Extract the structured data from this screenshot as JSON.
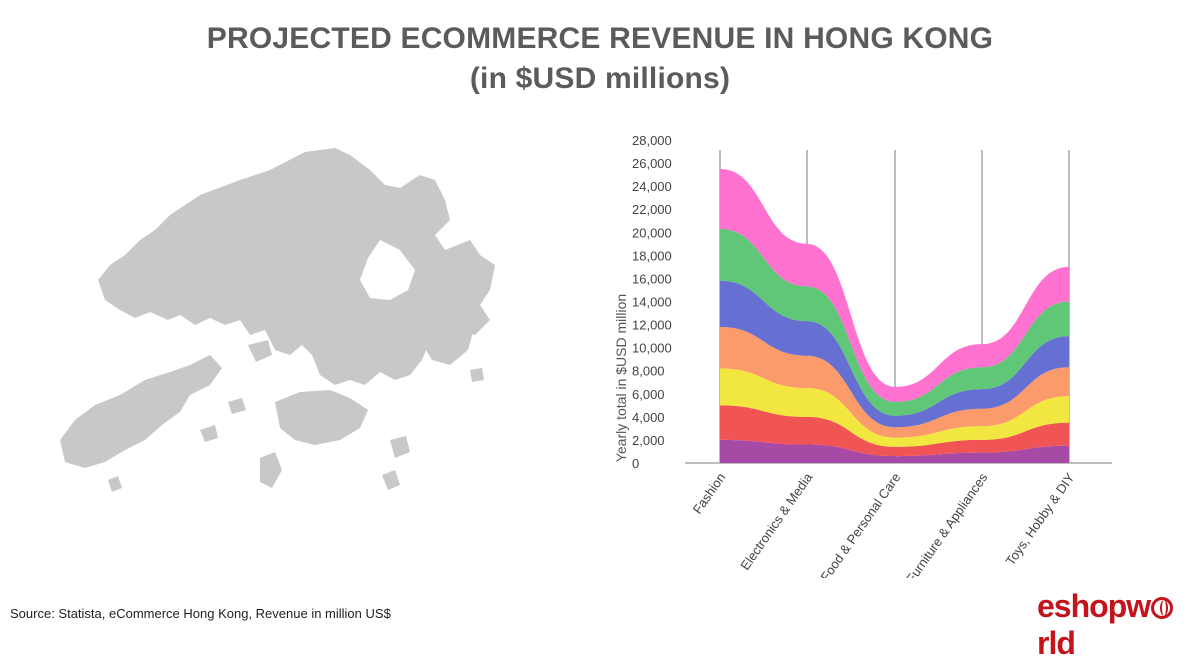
{
  "header": {
    "title": "PROJECTED ECOMMERCE REVENUE IN HONG KONG",
    "subtitle": "(in $USD millions)"
  },
  "map": {
    "icon": "hong-kong-map-icon",
    "color": "#c8c8c8"
  },
  "footer": {
    "source": "Source: Statista, eCommerce Hong Kong, Revenue in million US$",
    "logo_text": "eshopworld",
    "logo_color": "#c4131a"
  },
  "chart_data": {
    "type": "area",
    "stacked": true,
    "categories": [
      "Fashion",
      "Electronics & Media",
      "Food & Personal Care",
      "Furniture & Appliances",
      "Toys, Hobby & DIY"
    ],
    "ylabel": "Yearly total in $USD million",
    "ylim": [
      0,
      28000
    ],
    "yticks": [
      "28,000",
      "26,000",
      "24,000",
      "22,000",
      "20,000",
      "18,000",
      "16,000",
      "14,000",
      "12,000",
      "10,000",
      "8,000",
      "6,000",
      "4,000",
      "2,000",
      "0"
    ],
    "series": [
      {
        "color": "#a74aa6",
        "values": [
          2000,
          1600,
          600,
          900,
          1500
        ]
      },
      {
        "color": "#f05454",
        "values": [
          3000,
          2400,
          800,
          1100,
          2000
        ]
      },
      {
        "color": "#f2e740",
        "values": [
          3200,
          2500,
          800,
          1200,
          2300
        ]
      },
      {
        "color": "#fb9a6a",
        "values": [
          3600,
          2800,
          900,
          1500,
          2500
        ]
      },
      {
        "color": "#6670d2",
        "values": [
          4000,
          3000,
          1000,
          1700,
          2700
        ]
      },
      {
        "color": "#5fc777",
        "values": [
          4500,
          3000,
          1200,
          1900,
          3000
        ]
      },
      {
        "color": "#ff72cf",
        "values": [
          5200,
          3700,
          1300,
          2000,
          3000
        ]
      }
    ]
  }
}
